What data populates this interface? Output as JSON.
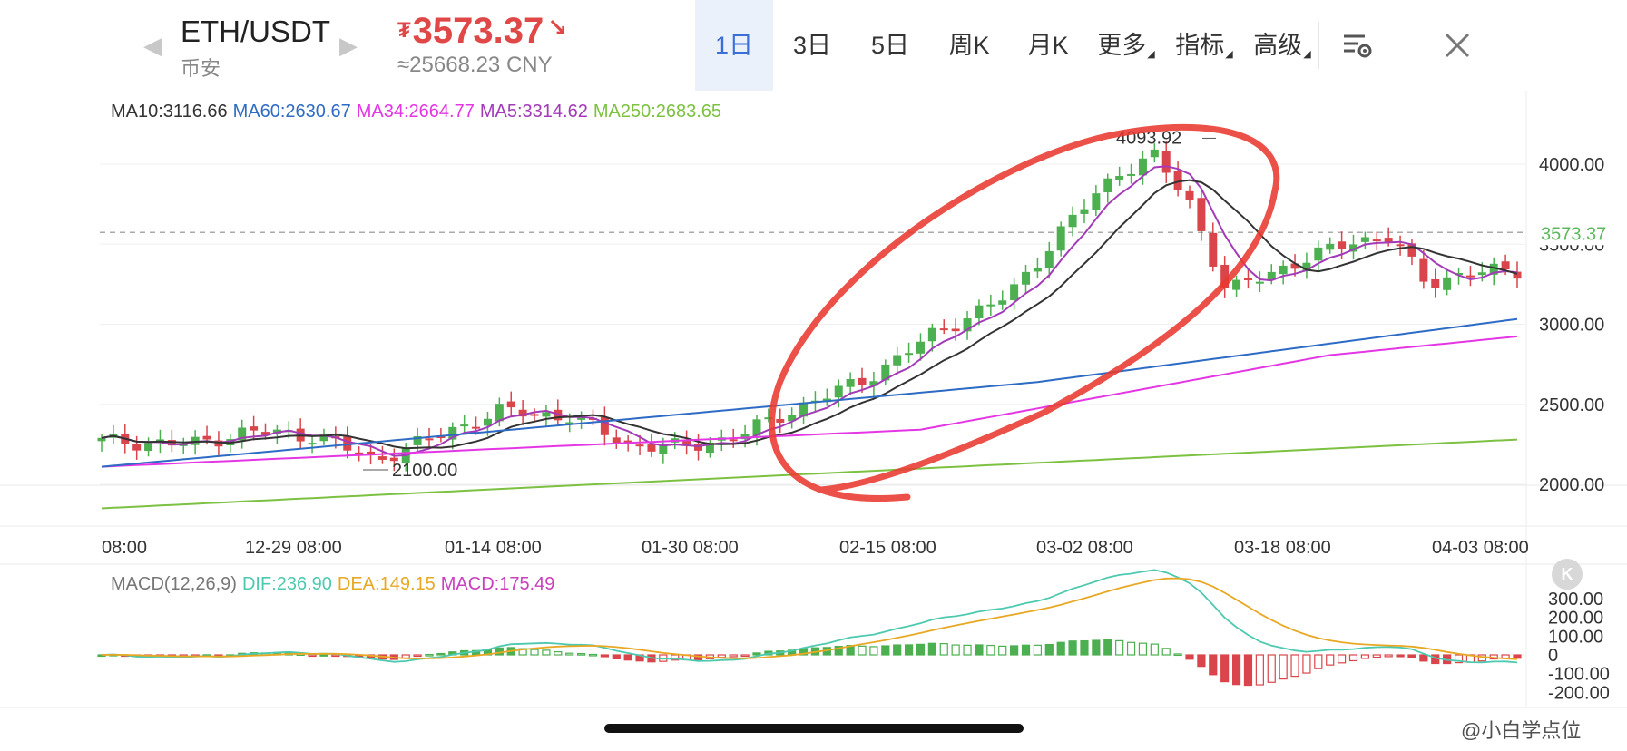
{
  "header": {
    "pair": "ETH/USDT",
    "exchange": "币安",
    "price": "3573.37",
    "currency_symbol": "₮",
    "direction": "↘",
    "price_cny": "≈25668.23 CNY",
    "price_color": "#e04848",
    "tabs": [
      {
        "label": "1日",
        "active": true,
        "dropdown": false
      },
      {
        "label": "3日",
        "active": false,
        "dropdown": false
      },
      {
        "label": "5日",
        "active": false,
        "dropdown": false
      },
      {
        "label": "周K",
        "active": false,
        "dropdown": false
      },
      {
        "label": "月K",
        "active": false,
        "dropdown": false
      },
      {
        "label": "更多",
        "active": false,
        "dropdown": true
      },
      {
        "label": "指标",
        "active": false,
        "dropdown": true
      },
      {
        "label": "高级",
        "active": false,
        "dropdown": true
      }
    ],
    "icons": {
      "prev": "chevron-left-icon",
      "next": "chevron-right-icon",
      "settings": "chart-settings-icon",
      "close": "close-icon"
    }
  },
  "ma_legend": [
    {
      "label": "MA10:3116.66",
      "color": "#333333"
    },
    {
      "label": "MA60:2630.67",
      "color": "#2e6bc4"
    },
    {
      "label": "MA34:2664.77",
      "color": "#e436e4"
    },
    {
      "label": "MA5:3314.62",
      "color": "#a33bb8"
    },
    {
      "label": "MA250:2683.65",
      "color": "#7cc142"
    }
  ],
  "macd_legend": [
    {
      "label": "MACD(12,26,9)",
      "color": "#777777"
    },
    {
      "label": "DIF:236.90",
      "color": "#4dc9b0"
    },
    {
      "label": "DEA:149.15",
      "color": "#e8a823"
    },
    {
      "label": "MACD:175.49",
      "color": "#c93fbf"
    }
  ],
  "colors": {
    "up": "#4caf50",
    "down": "#d9454a",
    "grid": "#eeeeee",
    "annotation": "#e8392f",
    "current_price_label": "#5cb85c"
  },
  "chart_data": {
    "type": "candlestick",
    "price_axis": {
      "ticks": [
        2000,
        2500,
        3000,
        3500,
        4000
      ],
      "tick_labels": [
        "2000.00",
        "2500.00",
        "3000.00",
        "3500.00",
        "4000.00"
      ],
      "range": [
        1760,
        4360
      ]
    },
    "time_axis": {
      "tick_labels": [
        "08:00",
        "12-29 08:00",
        "01-14 08:00",
        "01-30 08:00",
        "02-15 08:00",
        "03-02 08:00",
        "03-18 08:00",
        "04-03 08:00"
      ]
    },
    "current_price": 3573.37,
    "current_price_label": "3573.37",
    "annotations": {
      "high": "4093.92",
      "low": "2100.00"
    },
    "candle_count": 122,
    "macd_axis": {
      "ticks": [
        300,
        200,
        100,
        0,
        -100,
        -200
      ],
      "tick_labels": [
        "300.00",
        "200.00",
        "100.00",
        "0",
        "-100.00",
        "-200.00"
      ]
    }
  },
  "badge": "K",
  "watermark": "@小白学点位"
}
